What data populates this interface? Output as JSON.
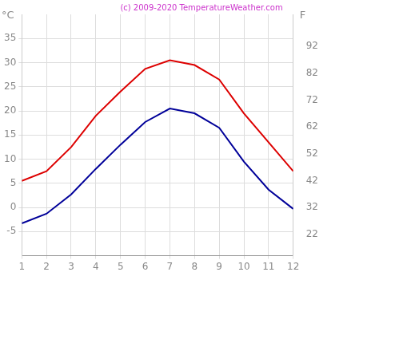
{
  "chart_data": {
    "type": "line",
    "title": "(c) 2009-2020 TemperatureWeather.com",
    "ylabel": "°C",
    "y2label": "F",
    "x": [
      1,
      2,
      3,
      4,
      5,
      6,
      7,
      8,
      9,
      10,
      11,
      12
    ],
    "xlim": [
      1,
      12
    ],
    "xticks": [
      1,
      2,
      3,
      4,
      5,
      6,
      7,
      8,
      9,
      10,
      11,
      12
    ],
    "ylim": [
      -10,
      40
    ],
    "yticks": [
      -5,
      0,
      5,
      10,
      15,
      20,
      25,
      30,
      35
    ],
    "y2lim": [
      14,
      104
    ],
    "y2ticks": [
      22,
      32,
      42,
      52,
      62,
      72,
      82,
      92
    ],
    "grid": true,
    "series": [
      {
        "color": "#dd0000",
        "values": [
          5.5,
          7.5,
          12.5,
          19,
          24,
          28.7,
          30.5,
          29.5,
          26.5,
          19.5,
          13.5,
          7.5
        ]
      },
      {
        "color": "#000099",
        "values": [
          -3.3,
          -1.3,
          2.7,
          8,
          13,
          17.7,
          20.5,
          19.5,
          16.5,
          9.5,
          3.7,
          -0.3
        ]
      }
    ]
  }
}
